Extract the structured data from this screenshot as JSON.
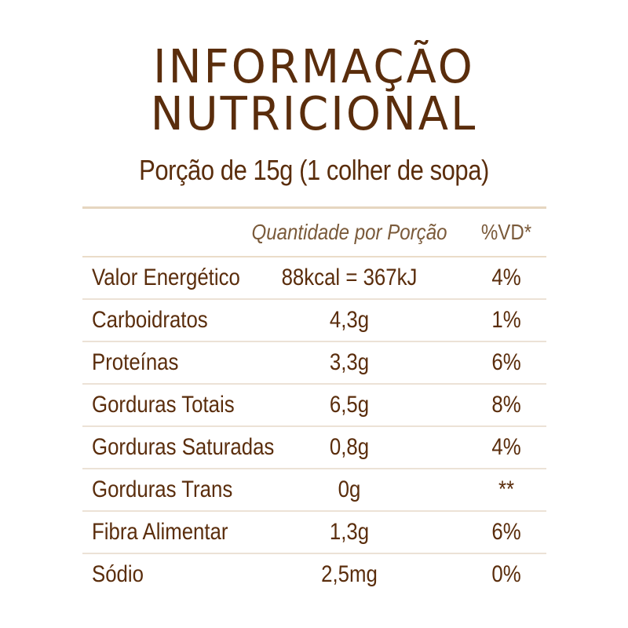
{
  "title": {
    "line1": "INFORMAÇÃO",
    "line2": "NUTRICIONAL"
  },
  "portion": "Porção de 15g (1 colher de sopa)",
  "columns": {
    "quantity": "Quantidade por Porção",
    "dv": "%VD*"
  },
  "rows": [
    {
      "name": "Valor Energético",
      "quantity": "88kcal = 367kJ",
      "dv": "4%"
    },
    {
      "name": "Carboidratos",
      "quantity": "4,3g",
      "dv": "1%"
    },
    {
      "name": "Proteínas",
      "quantity": "3,3g",
      "dv": "6%"
    },
    {
      "name": "Gorduras Totais",
      "quantity": "6,5g",
      "dv": "8%"
    },
    {
      "name": "Gorduras Saturadas",
      "quantity": "0,8g",
      "dv": "4%"
    },
    {
      "name": "Gorduras Trans",
      "quantity": "0g",
      "dv": "**"
    },
    {
      "name": "Fibra Alimentar",
      "quantity": "1,3g",
      "dv": "6%"
    },
    {
      "name": "Sódio",
      "quantity": "2,5mg",
      "dv": "0%"
    }
  ],
  "colors": {
    "text": "#5a2d0c",
    "header_text": "#7a5a3a",
    "rule": "#ece2d6"
  }
}
